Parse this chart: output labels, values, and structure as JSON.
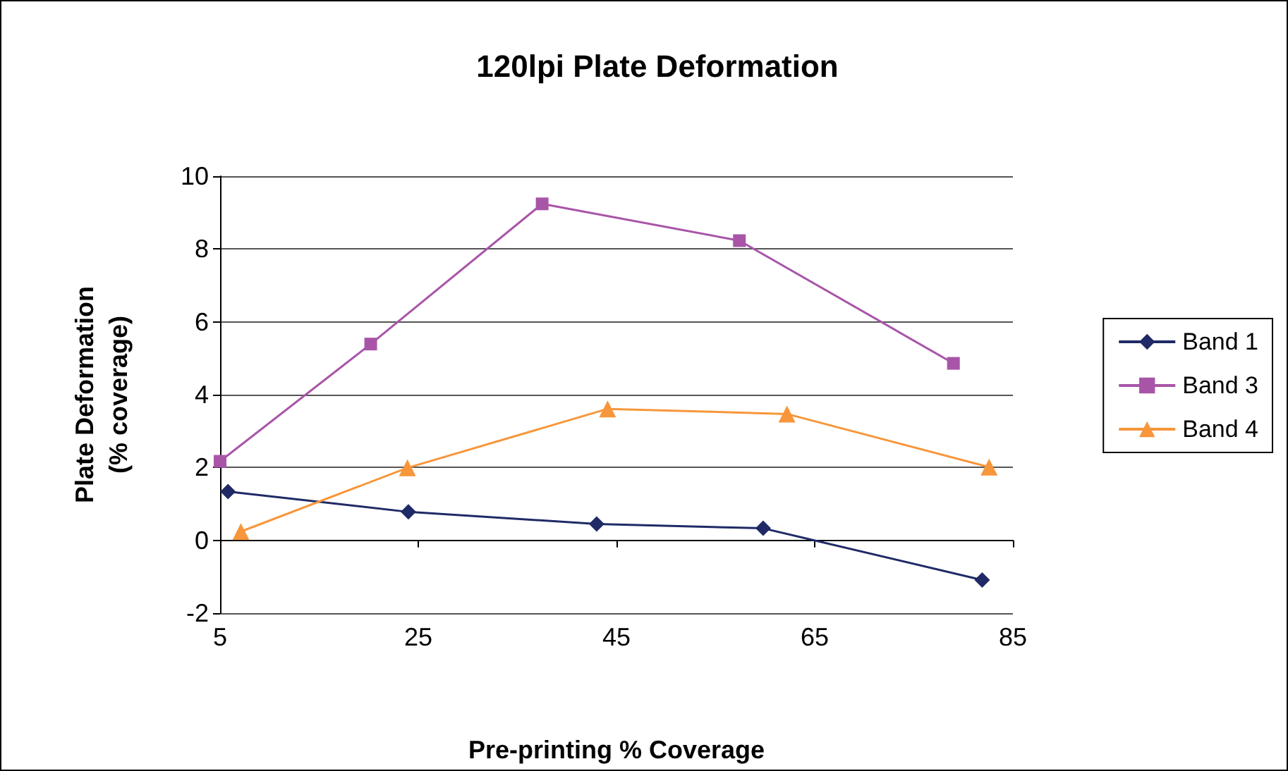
{
  "chart_data": {
    "type": "line",
    "title": "120lpi Plate Deformation",
    "xlabel": "Pre-printing % Coverage",
    "ylabel": "Plate Deformation\n(% coverage)",
    "xlim": [
      5,
      85
    ],
    "xticks": [
      5,
      25,
      45,
      65,
      85
    ],
    "ylim": [
      -2,
      10
    ],
    "yticks": [
      -2,
      0,
      2,
      4,
      6,
      8,
      10
    ],
    "grid": "y",
    "legend": "right",
    "series": [
      {
        "name": "Band 1",
        "color": "#1f2a66",
        "marker": "diamond",
        "x": [
          5.8,
          24.0,
          43.0,
          59.8,
          81.9
        ],
        "values": [
          1.34,
          0.78,
          0.45,
          0.33,
          -1.09
        ]
      },
      {
        "name": "Band 3",
        "color": "#a855a8",
        "marker": "square",
        "x": [
          5.0,
          20.2,
          37.5,
          57.4,
          79.0
        ],
        "values": [
          2.17,
          5.39,
          9.24,
          8.23,
          4.86
        ]
      },
      {
        "name": "Band 4",
        "color": "#f7963a",
        "marker": "triangle",
        "x": [
          7.1,
          23.9,
          44.1,
          62.2,
          82.6
        ],
        "values": [
          0.24,
          1.99,
          3.61,
          3.47,
          2.01
        ]
      }
    ]
  }
}
